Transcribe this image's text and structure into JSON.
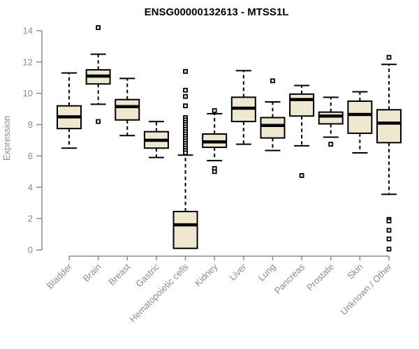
{
  "chart_data": {
    "type": "boxplot",
    "title": "ENSG00000132613 - MTSS1L",
    "ylabel": "Expression",
    "xlabel": "",
    "ylim": [
      0,
      14
    ],
    "yticks": [
      0,
      2,
      4,
      6,
      8,
      10,
      12,
      14
    ],
    "grid": false,
    "legend": "none",
    "categories": [
      "Bladder",
      "Brain",
      "Breast",
      "Gastric",
      "Hematopoietic cells",
      "Kidney",
      "Liver",
      "Lung",
      "Pancreas",
      "Prostate",
      "Skin",
      "Unknown / Other"
    ],
    "boxes": [
      {
        "category": "Bladder",
        "whisker_low": 6.5,
        "q1": 7.75,
        "median": 8.5,
        "q3": 9.2,
        "whisker_high": 11.3,
        "outliers": []
      },
      {
        "category": "Brain",
        "whisker_low": 9.3,
        "q1": 10.6,
        "median": 11.1,
        "q3": 11.5,
        "whisker_high": 12.5,
        "outliers": [
          14.2,
          8.2
        ]
      },
      {
        "category": "Breast",
        "whisker_low": 7.3,
        "q1": 8.3,
        "median": 9.15,
        "q3": 9.6,
        "whisker_high": 10.95,
        "outliers": []
      },
      {
        "category": "Gastric",
        "whisker_low": 5.9,
        "q1": 6.5,
        "median": 7.0,
        "q3": 7.55,
        "whisker_high": 8.2,
        "outliers": []
      },
      {
        "category": "Hematopoietic cells",
        "whisker_low": 0.1,
        "q1": 0.1,
        "median": 1.6,
        "q3": 2.45,
        "whisker_high": 6.05,
        "outliers": [
          11.4,
          10.2,
          9.8,
          9.2,
          8.45,
          8.3,
          8.15,
          8.0,
          7.85,
          7.7,
          7.55,
          7.4,
          7.25,
          7.1,
          6.95,
          6.8,
          6.65,
          6.5,
          6.35,
          6.2
        ]
      },
      {
        "category": "Kidney",
        "whisker_low": 5.7,
        "q1": 6.55,
        "median": 6.9,
        "q3": 7.4,
        "whisker_high": 8.7,
        "outliers": [
          8.9,
          5.2,
          5.0
        ]
      },
      {
        "category": "Liver",
        "whisker_low": 6.75,
        "q1": 8.2,
        "median": 9.05,
        "q3": 9.75,
        "whisker_high": 11.45,
        "outliers": []
      },
      {
        "category": "Lung",
        "whisker_low": 6.35,
        "q1": 7.15,
        "median": 7.95,
        "q3": 8.45,
        "whisker_high": 9.45,
        "outliers": [
          10.8
        ]
      },
      {
        "category": "Pancreas",
        "whisker_low": 6.65,
        "q1": 8.55,
        "median": 9.6,
        "q3": 9.95,
        "whisker_high": 10.5,
        "outliers": [
          4.75
        ]
      },
      {
        "category": "Prostate",
        "whisker_low": 7.2,
        "q1": 8.05,
        "median": 8.55,
        "q3": 8.8,
        "whisker_high": 9.75,
        "outliers": [
          6.75
        ]
      },
      {
        "category": "Skin",
        "whisker_low": 6.2,
        "q1": 7.45,
        "median": 8.65,
        "q3": 9.5,
        "whisker_high": 10.1,
        "outliers": []
      },
      {
        "category": "Unknown / Other",
        "whisker_low": 3.55,
        "q1": 6.85,
        "median": 8.1,
        "q3": 8.95,
        "whisker_high": 11.85,
        "outliers": [
          12.3,
          1.95,
          1.85,
          1.25,
          0.7,
          0.05
        ]
      }
    ],
    "style": {
      "box_fill": "#EDE8CF",
      "box_stroke": "#000000",
      "median_color": "#000000",
      "whisker_color": "#000000",
      "outlier_color": "#000000",
      "axis_color": "#8C8C8C",
      "label_color": "#8C8C8C",
      "title_color": "#000000",
      "background": "#FFFFFF"
    }
  }
}
